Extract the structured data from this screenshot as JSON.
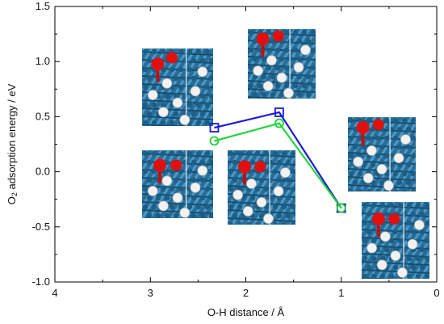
{
  "chart_data": {
    "type": "line",
    "xlabel": "O-H distance / Å",
    "ylabel": {
      "main": "O",
      "sub": "2",
      "rest": " adsorption energy / eV"
    },
    "xlim": [
      4,
      0
    ],
    "ylim": [
      -1.0,
      1.5
    ],
    "x_reversed": true,
    "x_ticks": [
      4,
      3,
      2,
      1,
      0
    ],
    "x_tick_labels": [
      "4",
      "3",
      "2",
      "1",
      "0"
    ],
    "y_ticks": [
      -1.0,
      -0.5,
      0.0,
      0.5,
      1.0,
      1.5
    ],
    "y_tick_labels": [
      "-1.0",
      "-0.5",
      "0.0",
      "0.5",
      "1.0",
      "1.5"
    ],
    "grid": false,
    "series": [
      {
        "color": "#1a1ad6",
        "marker": "square",
        "points": [
          [
            2.33,
            0.4
          ],
          [
            1.65,
            0.54
          ],
          [
            1.0,
            -0.33
          ]
        ]
      },
      {
        "color": "#22d43a",
        "marker": "circle",
        "points": [
          [
            2.33,
            0.28
          ],
          [
            1.65,
            0.44
          ],
          [
            1.0,
            -0.33
          ]
        ]
      }
    ],
    "insets": [
      {
        "name": "structure-inset-top-left",
        "depicts": "O2 molecule on blue metal cluster with hydrogen atoms",
        "o2": "upright"
      },
      {
        "name": "structure-inset-top-center",
        "depicts": "O2 molecule on blue metal cluster with hydrogen atoms",
        "o2": "tilted"
      },
      {
        "name": "structure-inset-right-upper",
        "depicts": "O2 molecule on blue metal cluster with hydrogen atoms",
        "o2": "tilted"
      },
      {
        "name": "structure-inset-bottom-left",
        "depicts": "O2 molecule on blue metal cluster with hydrogen atoms",
        "o2": "flat"
      },
      {
        "name": "structure-inset-bottom-center",
        "depicts": "O2 molecule on blue metal cluster with hydrogen atoms",
        "o2": "flat"
      },
      {
        "name": "structure-inset-bottom-right",
        "depicts": "O2 molecule on blue metal cluster with hydrogen atoms",
        "o2": "flat"
      }
    ]
  },
  "colors": {
    "metal": "#1f6f9c",
    "oxygen": "#e01010",
    "hydrogen": "#f2f2f2"
  }
}
